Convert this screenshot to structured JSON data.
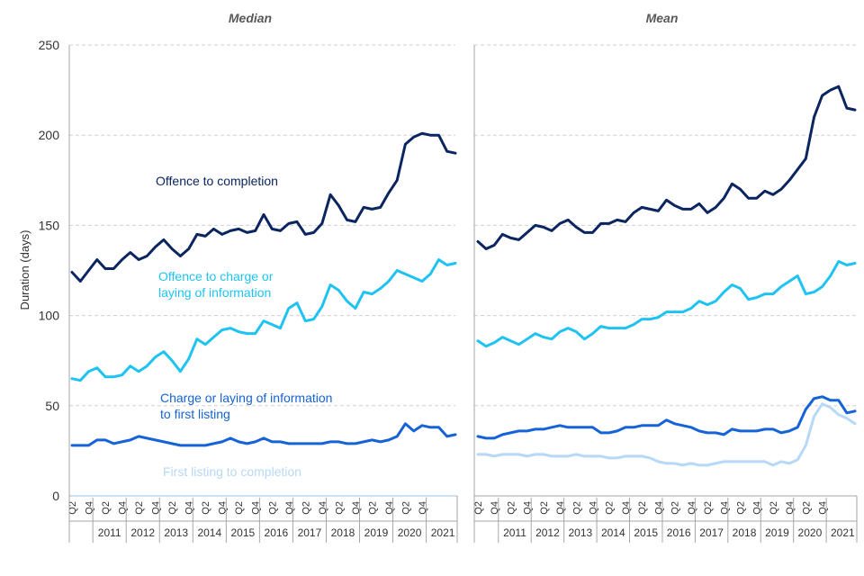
{
  "chart_data": {
    "type": "line",
    "ylabel": "Duration (days)",
    "ylim": [
      0,
      250
    ],
    "yticks": [
      0,
      50,
      100,
      150,
      200,
      250
    ],
    "grid": "horizontal dashed",
    "quarter_labels": [
      "Q2",
      "Q4",
      "Q2",
      "Q4",
      "Q2",
      "Q4",
      "Q2",
      "Q4",
      "Q2",
      "Q4",
      "Q2",
      "Q4",
      "Q2",
      "Q4",
      "Q2",
      "Q4",
      "Q2",
      "Q4",
      "Q2",
      "Q4",
      "Q2",
      "Q4"
    ],
    "year_labels": [
      "2011",
      "2012",
      "2013",
      "2014",
      "2015",
      "2016",
      "2017",
      "2018",
      "2019",
      "2020",
      "2021"
    ],
    "colors": {
      "offence_to_completion": "#0b2560",
      "offence_to_charge": "#1fc3f2",
      "charge_to_first_listing": "#1563d6",
      "first_listing_to_completion": "#b7d8f6"
    },
    "panels": [
      {
        "title": "Median",
        "series": [
          {
            "key": "offence_to_completion",
            "name": "Offence to completion",
            "values": [
              124,
              119,
              125,
              131,
              126,
              126,
              131,
              135,
              131,
              133,
              138,
              142,
              137,
              133,
              137,
              145,
              144,
              148,
              145,
              147,
              148,
              146,
              147,
              156,
              148,
              147,
              151,
              152,
              145,
              146,
              151,
              167,
              161,
              153,
              152,
              160,
              159,
              160,
              168,
              175,
              195,
              199,
              201,
              200,
              200,
              191,
              190
            ]
          },
          {
            "key": "offence_to_charge",
            "name": "Offence to charge or laying of information",
            "values": [
              65,
              64,
              69,
              71,
              66,
              66,
              67,
              72,
              69,
              72,
              77,
              80,
              75,
              69,
              76,
              87,
              84,
              88,
              92,
              93,
              91,
              90,
              90,
              97,
              95,
              93,
              104,
              107,
              97,
              98,
              105,
              117,
              114,
              108,
              104,
              113,
              112,
              115,
              119,
              125,
              123,
              121,
              119,
              123,
              131,
              128,
              129
            ]
          },
          {
            "key": "charge_to_first_listing",
            "name": "Charge or laying of information to first listing",
            "values": [
              28,
              28,
              28,
              31,
              31,
              29,
              30,
              31,
              33,
              32,
              31,
              30,
              29,
              28,
              28,
              28,
              28,
              29,
              30,
              32,
              30,
              29,
              30,
              32,
              30,
              30,
              29,
              29,
              29,
              29,
              29,
              30,
              30,
              29,
              29,
              30,
              31,
              30,
              31,
              33,
              40,
              36,
              39,
              38,
              38,
              33,
              34
            ]
          },
          {
            "key": "first_listing_to_completion",
            "name": "First listing to completion",
            "values": [
              0,
              0,
              0,
              0,
              0,
              0,
              0,
              0,
              0,
              0,
              0,
              0,
              0,
              0,
              0,
              0,
              0,
              0,
              0,
              0,
              0,
              0,
              0,
              0,
              0,
              0,
              0,
              0,
              0,
              0,
              0,
              0,
              0,
              0,
              0,
              0,
              0,
              0,
              0,
              0,
              0,
              0,
              0,
              0,
              0,
              0,
              0
            ]
          }
        ]
      },
      {
        "title": "Mean",
        "series": [
          {
            "key": "offence_to_completion",
            "name": "Offence to completion",
            "values": [
              141,
              137,
              139,
              145,
              143,
              142,
              146,
              150,
              149,
              147,
              151,
              153,
              149,
              146,
              146,
              151,
              151,
              153,
              152,
              157,
              160,
              159,
              158,
              164,
              161,
              159,
              159,
              162,
              157,
              160,
              165,
              173,
              170,
              165,
              165,
              169,
              167,
              170,
              175,
              181,
              187,
              210,
              222,
              225,
              227,
              215,
              214
            ]
          },
          {
            "key": "offence_to_charge",
            "name": "Offence to charge or laying of information",
            "values": [
              86,
              83,
              85,
              88,
              86,
              84,
              87,
              90,
              88,
              87,
              91,
              93,
              91,
              87,
              90,
              94,
              93,
              93,
              93,
              95,
              98,
              98,
              99,
              102,
              102,
              102,
              104,
              108,
              106,
              108,
              113,
              117,
              115,
              109,
              110,
              112,
              112,
              116,
              119,
              122,
              112,
              113,
              116,
              122,
              130,
              128,
              129
            ]
          },
          {
            "key": "charge_to_first_listing",
            "name": "Charge or laying of information to first listing",
            "values": [
              33,
              32,
              32,
              34,
              35,
              36,
              36,
              37,
              37,
              38,
              39,
              38,
              38,
              38,
              38,
              35,
              35,
              36,
              38,
              38,
              39,
              39,
              39,
              42,
              40,
              39,
              38,
              36,
              35,
              35,
              34,
              37,
              36,
              36,
              36,
              37,
              37,
              35,
              36,
              38,
              48,
              54,
              55,
              53,
              53,
              46,
              47
            ]
          },
          {
            "key": "first_listing_to_completion",
            "name": "First listing to completion",
            "values": [
              23,
              23,
              22,
              23,
              23,
              23,
              22,
              23,
              23,
              22,
              22,
              22,
              23,
              22,
              22,
              22,
              21,
              21,
              22,
              22,
              22,
              21,
              19,
              18,
              18,
              17,
              18,
              17,
              17,
              18,
              19,
              19,
              19,
              19,
              19,
              19,
              17,
              19,
              18,
              20,
              28,
              44,
              51,
              49,
              45,
              43,
              40
            ]
          }
        ]
      }
    ],
    "annotations": [
      {
        "key": "offence_to_completion",
        "lines": [
          "Offence to completion"
        ]
      },
      {
        "key": "offence_to_charge",
        "lines": [
          "Offence to charge or",
          "laying of information"
        ]
      },
      {
        "key": "charge_to_first_listing",
        "lines": [
          "Charge or laying of information",
          "to first listing"
        ]
      },
      {
        "key": "first_listing_to_completion",
        "lines": [
          "First listing to completion"
        ]
      }
    ]
  }
}
